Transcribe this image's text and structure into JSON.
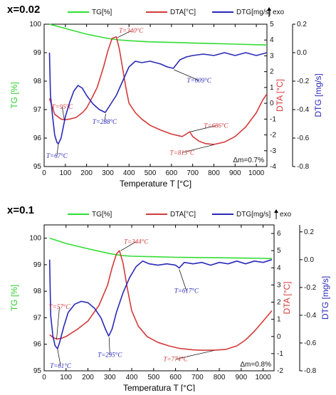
{
  "colors": {
    "tg": "#33dd33",
    "dta": "#d43a3a",
    "dtg": "#2a2ab8",
    "tgaxis": "#33cc33",
    "dtaaxis": "#d43a3a",
    "dtgaxis": "#2a2ab8"
  },
  "chart_data": [
    {
      "type": "line",
      "panel_label": "x=0.02",
      "exo_label": "exo",
      "mass_change": "Δm=0.7%",
      "xlabel": "Temperature T [°C]",
      "xlim": [
        0,
        1050
      ],
      "xticks": [
        0,
        100,
        200,
        300,
        400,
        500,
        600,
        700,
        800,
        900,
        1000
      ],
      "y_tg": {
        "label": "TG [%]",
        "lim": [
          95,
          100
        ],
        "ticks": [
          95,
          96,
          97,
          98,
          99,
          100
        ]
      },
      "y_dta": {
        "label": "DTA [°C]",
        "lim": [
          -4,
          5
        ],
        "ticks": [
          -4,
          -3,
          -2,
          -1,
          0,
          1,
          2,
          3,
          4,
          5
        ]
      },
      "y_dtg": {
        "label": "DTG [mg/s]",
        "lim": [
          -0.8,
          0.2
        ],
        "ticks": [
          -0.8,
          -0.6,
          -0.4,
          -0.2,
          0.0,
          0.2
        ]
      },
      "legend": [
        "TG[%]",
        "DTA[°C]",
        "DTG[mg/s]"
      ],
      "series": [
        {
          "name": "TG[%]",
          "axis": "tg",
          "color": "#33dd33",
          "x": [
            25,
            100,
            200,
            300,
            350,
            400,
            500,
            600,
            700,
            800,
            900,
            1000,
            1050
          ],
          "y": [
            100.0,
            99.85,
            99.65,
            99.5,
            99.45,
            99.42,
            99.38,
            99.36,
            99.34,
            99.32,
            99.3,
            99.28,
            99.27
          ]
        },
        {
          "name": "DTA[°C]",
          "axis": "dta",
          "color": "#d43a3a",
          "x": [
            25,
            50,
            80,
            95,
            120,
            150,
            180,
            200,
            220,
            250,
            280,
            300,
            320,
            340,
            355,
            370,
            385,
            400,
            430,
            460,
            500,
            550,
            600,
            650,
            670,
            686,
            700,
            730,
            760,
            800,
            850,
            900,
            950,
            1000,
            1030,
            1050
          ],
          "y": [
            0.3,
            -0.7,
            -1.0,
            -1.05,
            -1.0,
            -0.9,
            -0.6,
            -0.3,
            0.2,
            1.0,
            2.3,
            3.3,
            4.1,
            4.2,
            3.4,
            2.2,
            1.0,
            0.0,
            -0.6,
            -1.0,
            -1.4,
            -1.7,
            -1.95,
            -2.1,
            -1.95,
            -1.8,
            -2.1,
            -2.4,
            -2.55,
            -2.6,
            -2.45,
            -2.1,
            -1.5,
            -0.6,
            0.2,
            0.6
          ]
        },
        {
          "name": "DTG[mg/s]",
          "axis": "dtg",
          "color": "#2a2ab8",
          "x": [
            25,
            30,
            40,
            50,
            60,
            67,
            80,
            100,
            120,
            140,
            160,
            180,
            200,
            230,
            260,
            288,
            310,
            340,
            370,
            400,
            430,
            460,
            500,
            550,
            580,
            609,
            640,
            670,
            700,
            750,
            800,
            850,
            900,
            950,
            1000,
            1050
          ],
          "y": [
            0.0,
            -0.3,
            -0.45,
            -0.58,
            -0.63,
            -0.64,
            -0.6,
            -0.45,
            -0.35,
            -0.27,
            -0.23,
            -0.25,
            -0.3,
            -0.36,
            -0.4,
            -0.42,
            -0.37,
            -0.3,
            -0.2,
            -0.1,
            -0.06,
            -0.07,
            -0.06,
            -0.08,
            -0.1,
            -0.11,
            -0.05,
            -0.03,
            -0.02,
            -0.01,
            -0.02,
            0.0,
            -0.02,
            0.0,
            -0.02,
            0.0
          ]
        }
      ],
      "annotations": [
        {
          "text": "T=340°C",
          "color": "#d43a3a",
          "x": 410,
          "yaxis": "dta",
          "y": 4.45,
          "ax": 345,
          "ay_axis": "dta",
          "ay": 4.15
        },
        {
          "text": "T=95°C",
          "color": "#d43a3a",
          "x": 85,
          "yaxis": "dta",
          "y": -0.35,
          "ax": 95,
          "ay_axis": "dta",
          "ay": -1.05
        },
        {
          "text": "T=67°C",
          "color": "#2a2ab8",
          "x": 60,
          "yaxis": "dtg",
          "y": -0.74,
          "ax": 67,
          "ay_axis": "dtg",
          "ay": -0.64
        },
        {
          "text": "T=288°C",
          "color": "#2a2ab8",
          "x": 285,
          "yaxis": "dtg",
          "y": -0.5,
          "ax": 290,
          "ay_axis": "dtg",
          "ay": -0.43
        },
        {
          "text": "T=609°C",
          "color": "#2a2ab8",
          "x": 730,
          "yaxis": "dtg",
          "y": -0.21,
          "ax": 612,
          "ay_axis": "dtg",
          "ay": -0.12
        },
        {
          "text": "T=686°C",
          "color": "#d43a3a",
          "x": 810,
          "yaxis": "dta",
          "y": -1.55,
          "ax": 690,
          "ay_axis": "dta",
          "ay": -1.8
        },
        {
          "text": "T=813°C",
          "color": "#d43a3a",
          "x": 650,
          "yaxis": "dta",
          "y": -3.25,
          "ax": 800,
          "ay_axis": "dta",
          "ay": -2.62
        }
      ]
    },
    {
      "type": "line",
      "panel_label": "x=0.1",
      "exo_label": "exo",
      "mass_change": "Δm=0.8%",
      "xlabel": "Temperatura T [°C]",
      "xlim": [
        0,
        1050
      ],
      "xticks": [
        0,
        100,
        200,
        300,
        400,
        500,
        600,
        700,
        800,
        900,
        1000
      ],
      "y_tg": {
        "label": "TG [%]",
        "lim": [
          95,
          100.5
        ],
        "ticks": [
          95,
          96,
          97,
          98,
          99,
          100
        ]
      },
      "y_dta": {
        "label": "DTA [°C]",
        "lim": [
          -2,
          6.5
        ],
        "ticks": [
          -2,
          -1,
          0,
          1,
          2,
          3,
          4,
          5,
          6
        ]
      },
      "y_dtg": {
        "label": "DTG [mg/s]",
        "lim": [
          -0.8,
          0.25
        ],
        "ticks": [
          -0.8,
          -0.6,
          -0.4,
          -0.2,
          0.0,
          0.2
        ]
      },
      "legend": [
        "TG[%]",
        "DTA[°C]",
        "DTG[mg/s]"
      ],
      "series": [
        {
          "name": "TG[%]",
          "axis": "tg",
          "color": "#33dd33",
          "x": [
            25,
            100,
            200,
            300,
            350,
            400,
            500,
            600,
            700,
            800,
            900,
            1000,
            1040
          ],
          "y": [
            100.0,
            99.8,
            99.6,
            99.42,
            99.35,
            99.32,
            99.3,
            99.28,
            99.27,
            99.26,
            99.25,
            99.24,
            99.23
          ]
        },
        {
          "name": "DTA[°C]",
          "axis": "dta",
          "color": "#d43a3a",
          "x": [
            25,
            40,
            57,
            80,
            100,
            150,
            200,
            250,
            290,
            310,
            330,
            344,
            360,
            380,
            400,
            430,
            470,
            520,
            570,
            620,
            680,
            720,
            774,
            830,
            880,
            920,
            960,
            1000,
            1040
          ],
          "y": [
            0.1,
            -0.05,
            -0.15,
            -0.1,
            0.0,
            0.4,
            0.9,
            1.8,
            3.0,
            4.0,
            4.8,
            5.0,
            4.3,
            2.8,
            1.5,
            0.6,
            0.0,
            -0.35,
            -0.55,
            -0.7,
            -0.78,
            -0.8,
            -0.8,
            -0.75,
            -0.55,
            -0.2,
            0.3,
            0.9,
            1.5
          ]
        },
        {
          "name": "DTG[mg/s]",
          "axis": "dtg",
          "color": "#2a2ab8",
          "x": [
            25,
            30,
            40,
            50,
            61,
            70,
            90,
            110,
            140,
            170,
            200,
            230,
            260,
            280,
            295,
            310,
            330,
            360,
            390,
            420,
            450,
            480,
            520,
            560,
            600,
            617,
            640,
            680,
            720,
            760,
            800,
            840,
            880,
            920,
            960,
            1000,
            1040
          ],
          "y": [
            0.0,
            -0.4,
            -0.55,
            -0.62,
            -0.64,
            -0.6,
            -0.48,
            -0.38,
            -0.32,
            -0.3,
            -0.31,
            -0.35,
            -0.42,
            -0.5,
            -0.55,
            -0.5,
            -0.38,
            -0.24,
            -0.13,
            -0.05,
            -0.01,
            -0.03,
            -0.04,
            -0.03,
            -0.04,
            -0.06,
            -0.02,
            -0.03,
            -0.02,
            -0.04,
            -0.02,
            -0.03,
            -0.01,
            -0.03,
            -0.01,
            -0.02,
            0.0
          ]
        }
      ],
      "annotations": [
        {
          "text": "T=344°C",
          "color": "#d43a3a",
          "x": 420,
          "yaxis": "dta",
          "y": 5.4,
          "ax": 350,
          "ay_axis": "dta",
          "ay": 5.0
        },
        {
          "text": "T=57°C",
          "color": "#d43a3a",
          "x": 70,
          "yaxis": "dta",
          "y": 1.6,
          "ax": 57,
          "ay_axis": "dta",
          "ay": -0.15
        },
        {
          "text": "T=61°C",
          "color": "#2a2ab8",
          "x": 75,
          "yaxis": "dtg",
          "y": -0.78,
          "ax": 61,
          "ay_axis": "dtg",
          "ay": -0.64
        },
        {
          "text": "T=295°C",
          "color": "#2a2ab8",
          "x": 300,
          "yaxis": "dtg",
          "y": -0.7,
          "ax": 297,
          "ay_axis": "dtg",
          "ay": -0.56
        },
        {
          "text": "T=617°C",
          "color": "#2a2ab8",
          "x": 650,
          "yaxis": "dtg",
          "y": -0.24,
          "ax": 617,
          "ay_axis": "dtg",
          "ay": -0.07
        },
        {
          "text": "T=774°C",
          "color": "#d43a3a",
          "x": 600,
          "yaxis": "dta",
          "y": -1.45,
          "ax": 774,
          "ay_axis": "dta",
          "ay": -0.82
        }
      ]
    }
  ]
}
